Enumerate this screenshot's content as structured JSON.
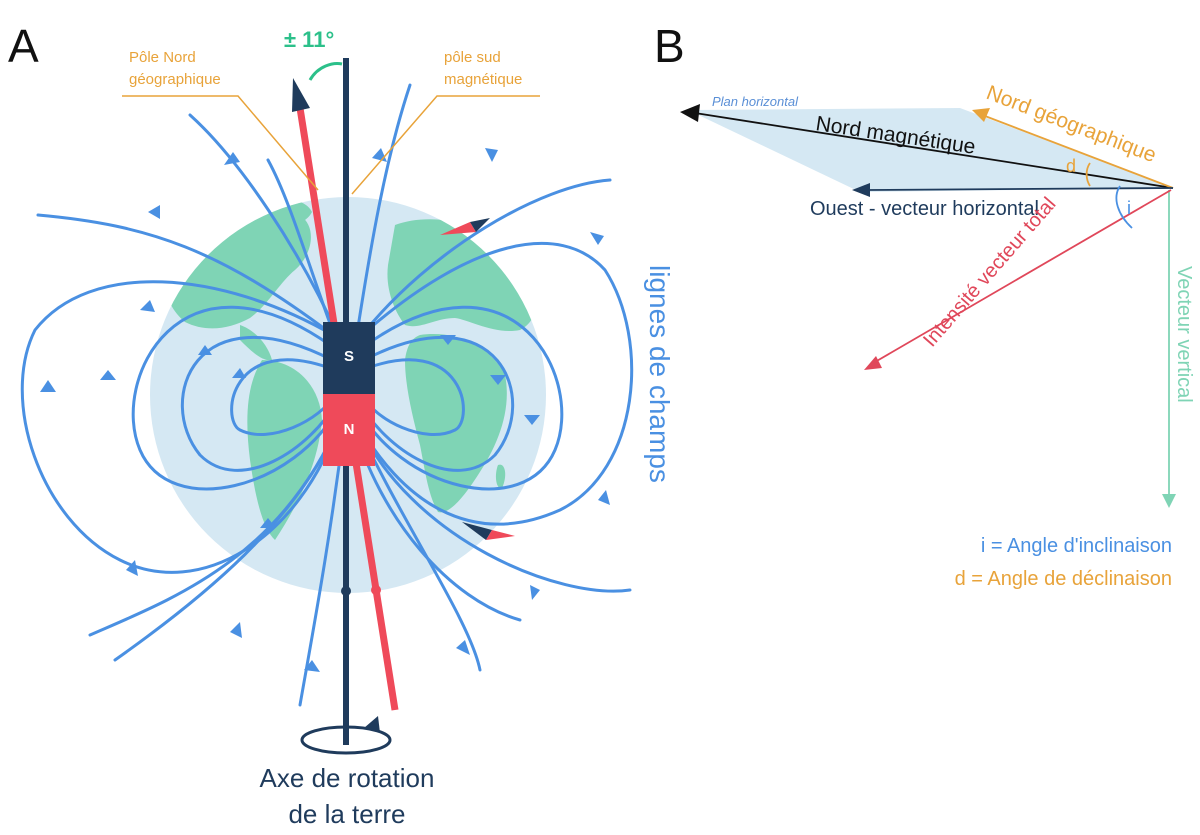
{
  "panel_a": {
    "letter": "A",
    "north_geo_line1": "Pôle Nord",
    "north_geo_line2": "géographique",
    "south_mag_line1": "pôle sud",
    "south_mag_line2": "magnétique",
    "tilt_angle": "± 11°",
    "field_lines_label": "lignes de champs",
    "axis_line1": "Axe de rotation",
    "axis_line2": "de la terre",
    "magnet_top": "S",
    "magnet_bottom": "N"
  },
  "panel_b": {
    "letter": "B",
    "plan_horizontal": "Plan horizontal",
    "nord_magnetique": "Nord magnétique",
    "nord_geographique": "Nord géographique",
    "ouest_vecteur": "Ouest - vecteur horizontal",
    "intensite": "Intensité vecteur total",
    "vecteur_vertical": "Vecteur vertical",
    "angle_i": "i",
    "angle_d": "d",
    "legend_i": "i = Angle d'inclinaison",
    "legend_d": "d = Angle de déclinaison"
  },
  "colors": {
    "field_blue": "#4a90e2",
    "globe": "#d5e8f3",
    "land": "#7fd4b5",
    "axis_navy": "#1f3b5c",
    "magnet_red": "#ef4a5a",
    "label_orange": "#e8a33a",
    "angle_green": "#2cc08a"
  }
}
